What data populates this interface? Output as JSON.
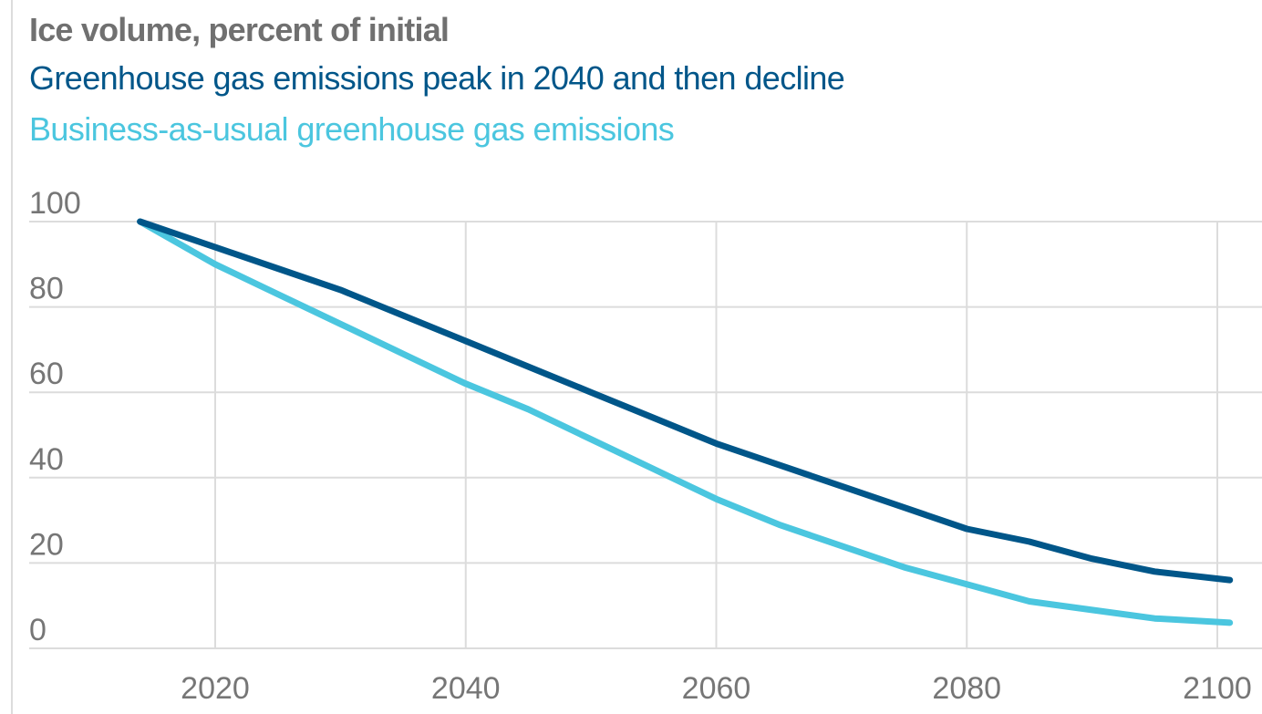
{
  "colors": {
    "title": "#707070",
    "grid": "#dcdcdc",
    "tick": "#767676",
    "series": [
      "#005689",
      "#4bc6df"
    ]
  },
  "chart_data": {
    "type": "line",
    "title": "Ice volume, percent of initial",
    "xlabel": "",
    "ylabel": "",
    "xlim": [
      2010,
      2102
    ],
    "ylim": [
      0,
      100
    ],
    "x_ticks": [
      "2020",
      "2040",
      "2060",
      "2080",
      "2100"
    ],
    "y_ticks": [
      "100",
      "80",
      "60",
      "40",
      "20",
      "0"
    ],
    "grid": true,
    "legend_position": "top",
    "series": [
      {
        "name": "Greenhouse gas emissions peak in 2040 and then decline",
        "color": "#005689",
        "x": [
          2014,
          2020,
          2025,
          2030,
          2035,
          2040,
          2045,
          2050,
          2055,
          2060,
          2065,
          2070,
          2075,
          2080,
          2085,
          2090,
          2095,
          2101
        ],
        "y": [
          100,
          94,
          89,
          84,
          78,
          72,
          66,
          60,
          54,
          48,
          43,
          38,
          33,
          28,
          25,
          21,
          18,
          16
        ]
      },
      {
        "name": "Business-as-usual greenhouse gas emissions",
        "color": "#4bc6df",
        "x": [
          2014,
          2020,
          2025,
          2030,
          2035,
          2040,
          2045,
          2050,
          2055,
          2060,
          2065,
          2070,
          2075,
          2080,
          2085,
          2090,
          2095,
          2101
        ],
        "y": [
          100,
          90,
          83,
          76,
          69,
          62,
          56,
          49,
          42,
          35,
          29,
          24,
          19,
          15,
          11,
          9,
          7,
          6
        ]
      }
    ]
  }
}
